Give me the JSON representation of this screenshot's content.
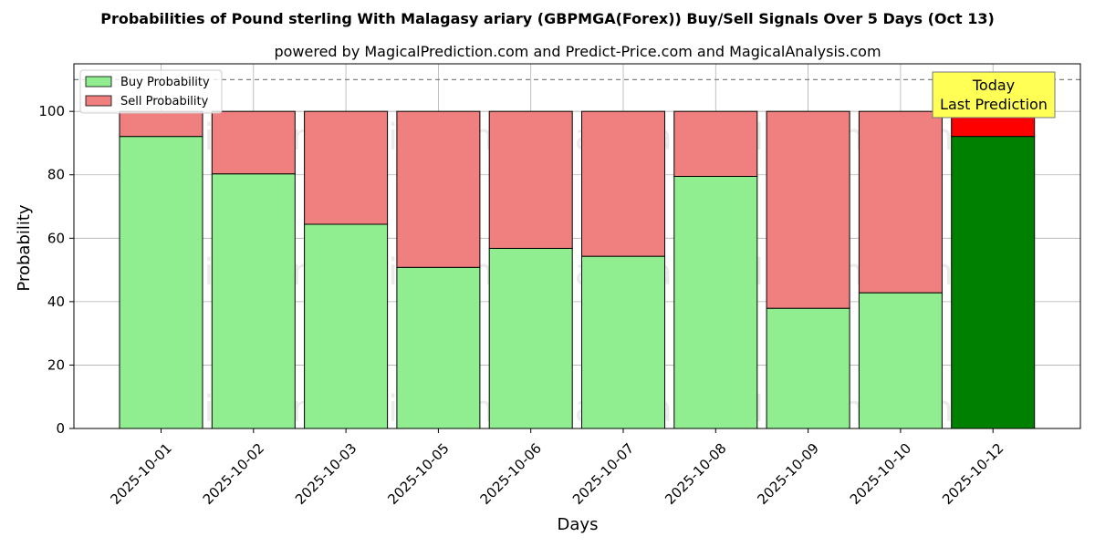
{
  "chart_data": {
    "type": "bar",
    "stacked": true,
    "title": "Probabilities of Pound sterling With Malagasy ariary (GBPMGA(Forex)) Buy/Sell Signals Over 5 Days (Oct 13)",
    "subtitle": "powered by MagicalPrediction.com and Predict-Price.com and MagicalAnalysis.com",
    "xlabel": "Days",
    "ylabel": "Probability",
    "ylim": [
      0,
      115
    ],
    "yticks": [
      0,
      20,
      40,
      60,
      80,
      100
    ],
    "grid": true,
    "legend_position": "top-left",
    "reference_line": 110,
    "categories": [
      "2025-10-01",
      "2025-10-02",
      "2025-10-03",
      "2025-10-05",
      "2025-10-06",
      "2025-10-07",
      "2025-10-08",
      "2025-10-09",
      "2025-10-10",
      "2025-10-12"
    ],
    "series": [
      {
        "name": "Buy Probability",
        "color": "#90ee90",
        "highlight_color": "#008000",
        "values": [
          92.1,
          80.3,
          64.4,
          50.8,
          56.8,
          54.3,
          79.5,
          37.9,
          42.8,
          92.1
        ]
      },
      {
        "name": "Sell Probability",
        "color": "#f08080",
        "highlight_color": "#ff0000",
        "values": [
          7.9,
          19.7,
          35.6,
          49.2,
          43.2,
          45.7,
          20.5,
          62.1,
          57.2,
          7.9
        ]
      }
    ],
    "highlight_index": 9,
    "annotation": {
      "line1": "Today",
      "line2": "Last Prediction",
      "color": "#ffff55"
    },
    "watermarks": [
      "MagicalAnalysis.com",
      "MagicalPrediction.com",
      "MagicalAnalysis.com",
      "MagicalPrediction.com",
      "MagicalAnalysis.com",
      "MagicalPrediction.com"
    ]
  }
}
